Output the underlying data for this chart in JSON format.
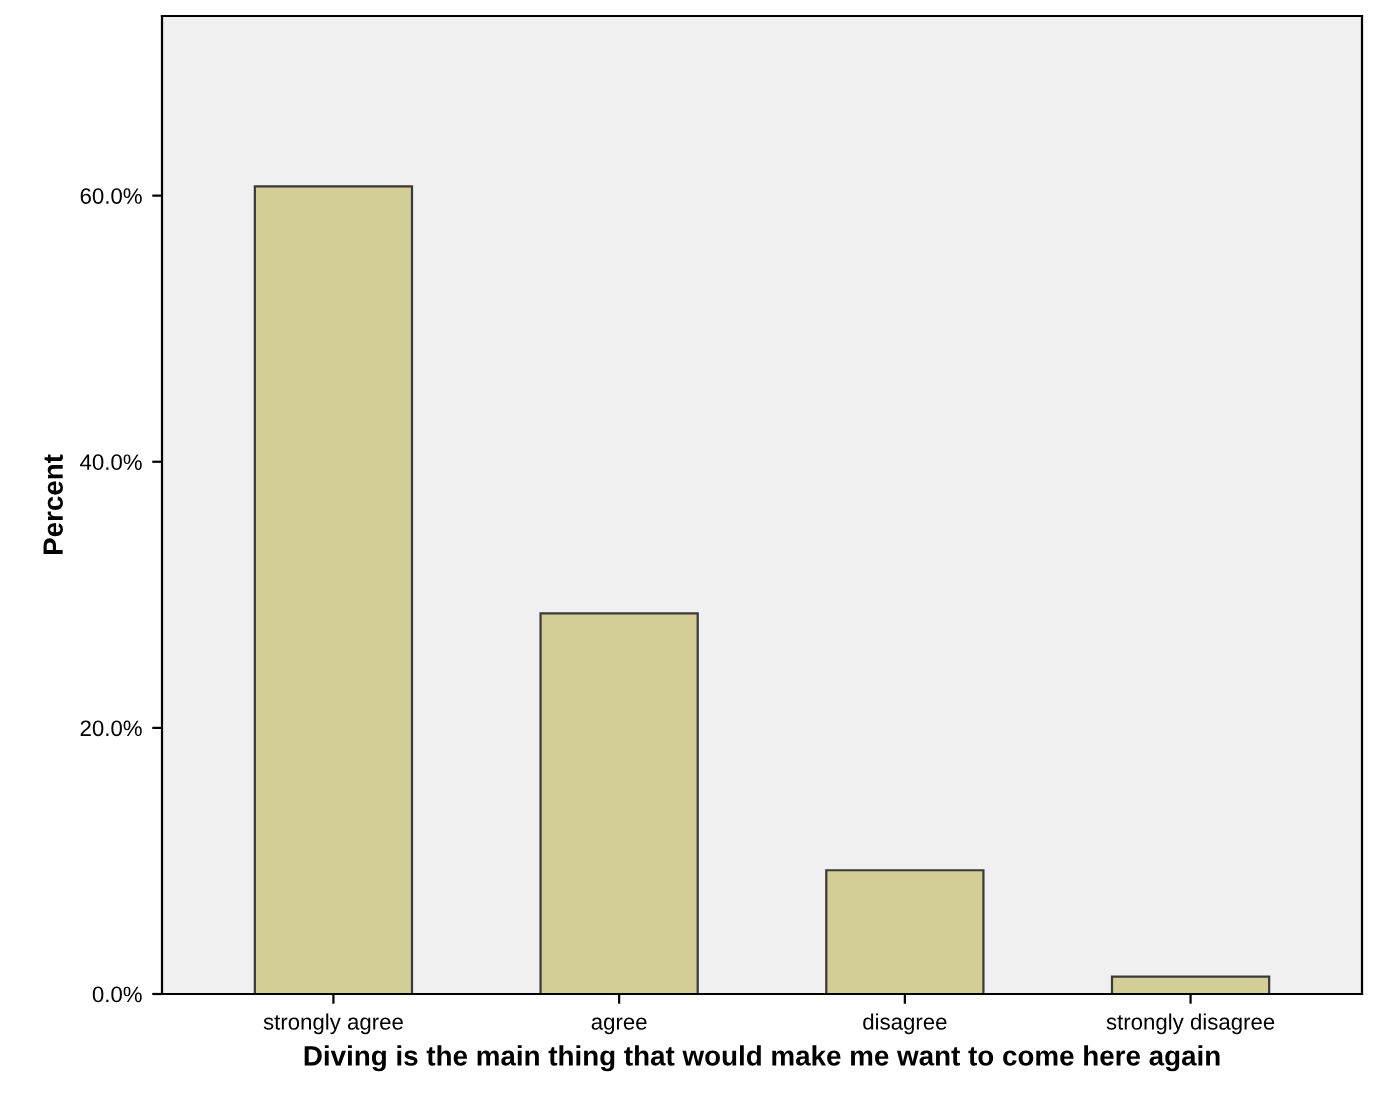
{
  "chart_data": {
    "type": "bar",
    "xlabel": "Diving is the main thing that would make me want to come here again",
    "ylabel": "Percent",
    "categories": [
      "strongly agree",
      "agree",
      "disagree",
      "strongly disagree"
    ],
    "values": [
      60.7,
      28.6,
      9.3,
      1.3
    ],
    "color": "#d3ce96",
    "ylim": [
      0,
      73.5
    ],
    "yticks": [
      {
        "value": 0,
        "label": "0.0%"
      },
      {
        "value": 20,
        "label": "20.0%"
      },
      {
        "value": 40,
        "label": "40.0%"
      },
      {
        "value": 60,
        "label": "60.0%"
      }
    ],
    "grid": false
  }
}
